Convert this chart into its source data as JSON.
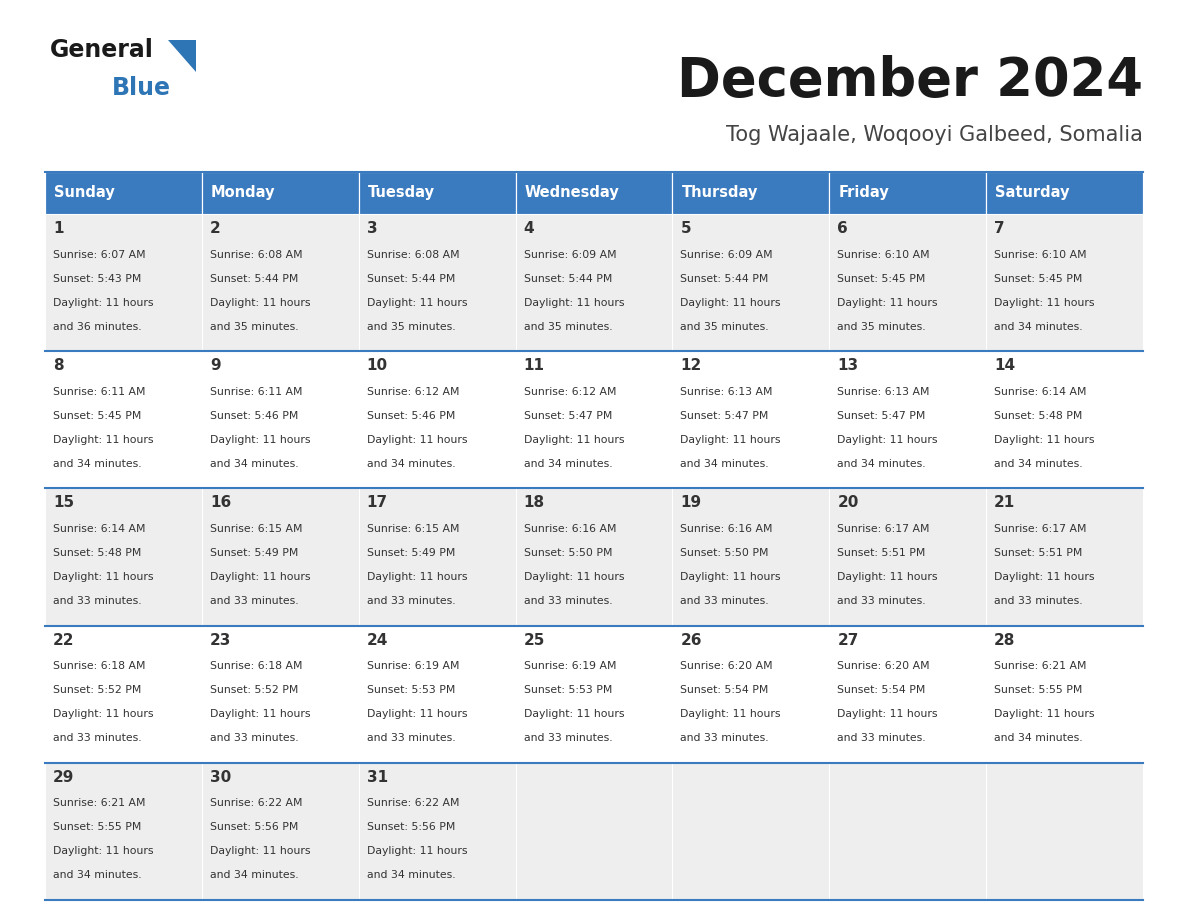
{
  "title": "December 2024",
  "subtitle": "Tog Wajaale, Woqooyi Galbeed, Somalia",
  "days_of_week": [
    "Sunday",
    "Monday",
    "Tuesday",
    "Wednesday",
    "Thursday",
    "Friday",
    "Saturday"
  ],
  "header_bg": "#3a7abf",
  "header_text": "#ffffff",
  "row_bg_even": "#eeeeee",
  "row_bg_odd": "#ffffff",
  "separator_color": "#3a7abf",
  "cell_text_color": "#333333",
  "day_num_color": "#333333",
  "calendar_data": [
    [
      {
        "day": 1,
        "sunrise": "6:07 AM",
        "sunset": "5:43 PM",
        "hours": "11 hours",
        "mins": "and 36 minutes."
      },
      {
        "day": 2,
        "sunrise": "6:08 AM",
        "sunset": "5:44 PM",
        "hours": "11 hours",
        "mins": "and 35 minutes."
      },
      {
        "day": 3,
        "sunrise": "6:08 AM",
        "sunset": "5:44 PM",
        "hours": "11 hours",
        "mins": "and 35 minutes."
      },
      {
        "day": 4,
        "sunrise": "6:09 AM",
        "sunset": "5:44 PM",
        "hours": "11 hours",
        "mins": "and 35 minutes."
      },
      {
        "day": 5,
        "sunrise": "6:09 AM",
        "sunset": "5:44 PM",
        "hours": "11 hours",
        "mins": "and 35 minutes."
      },
      {
        "day": 6,
        "sunrise": "6:10 AM",
        "sunset": "5:45 PM",
        "hours": "11 hours",
        "mins": "and 35 minutes."
      },
      {
        "day": 7,
        "sunrise": "6:10 AM",
        "sunset": "5:45 PM",
        "hours": "11 hours",
        "mins": "and 34 minutes."
      }
    ],
    [
      {
        "day": 8,
        "sunrise": "6:11 AM",
        "sunset": "5:45 PM",
        "hours": "11 hours",
        "mins": "and 34 minutes."
      },
      {
        "day": 9,
        "sunrise": "6:11 AM",
        "sunset": "5:46 PM",
        "hours": "11 hours",
        "mins": "and 34 minutes."
      },
      {
        "day": 10,
        "sunrise": "6:12 AM",
        "sunset": "5:46 PM",
        "hours": "11 hours",
        "mins": "and 34 minutes."
      },
      {
        "day": 11,
        "sunrise": "6:12 AM",
        "sunset": "5:47 PM",
        "hours": "11 hours",
        "mins": "and 34 minutes."
      },
      {
        "day": 12,
        "sunrise": "6:13 AM",
        "sunset": "5:47 PM",
        "hours": "11 hours",
        "mins": "and 34 minutes."
      },
      {
        "day": 13,
        "sunrise": "6:13 AM",
        "sunset": "5:47 PM",
        "hours": "11 hours",
        "mins": "and 34 minutes."
      },
      {
        "day": 14,
        "sunrise": "6:14 AM",
        "sunset": "5:48 PM",
        "hours": "11 hours",
        "mins": "and 34 minutes."
      }
    ],
    [
      {
        "day": 15,
        "sunrise": "6:14 AM",
        "sunset": "5:48 PM",
        "hours": "11 hours",
        "mins": "and 33 minutes."
      },
      {
        "day": 16,
        "sunrise": "6:15 AM",
        "sunset": "5:49 PM",
        "hours": "11 hours",
        "mins": "and 33 minutes."
      },
      {
        "day": 17,
        "sunrise": "6:15 AM",
        "sunset": "5:49 PM",
        "hours": "11 hours",
        "mins": "and 33 minutes."
      },
      {
        "day": 18,
        "sunrise": "6:16 AM",
        "sunset": "5:50 PM",
        "hours": "11 hours",
        "mins": "and 33 minutes."
      },
      {
        "day": 19,
        "sunrise": "6:16 AM",
        "sunset": "5:50 PM",
        "hours": "11 hours",
        "mins": "and 33 minutes."
      },
      {
        "day": 20,
        "sunrise": "6:17 AM",
        "sunset": "5:51 PM",
        "hours": "11 hours",
        "mins": "and 33 minutes."
      },
      {
        "day": 21,
        "sunrise": "6:17 AM",
        "sunset": "5:51 PM",
        "hours": "11 hours",
        "mins": "and 33 minutes."
      }
    ],
    [
      {
        "day": 22,
        "sunrise": "6:18 AM",
        "sunset": "5:52 PM",
        "hours": "11 hours",
        "mins": "and 33 minutes."
      },
      {
        "day": 23,
        "sunrise": "6:18 AM",
        "sunset": "5:52 PM",
        "hours": "11 hours",
        "mins": "and 33 minutes."
      },
      {
        "day": 24,
        "sunrise": "6:19 AM",
        "sunset": "5:53 PM",
        "hours": "11 hours",
        "mins": "and 33 minutes."
      },
      {
        "day": 25,
        "sunrise": "6:19 AM",
        "sunset": "5:53 PM",
        "hours": "11 hours",
        "mins": "and 33 minutes."
      },
      {
        "day": 26,
        "sunrise": "6:20 AM",
        "sunset": "5:54 PM",
        "hours": "11 hours",
        "mins": "and 33 minutes."
      },
      {
        "day": 27,
        "sunrise": "6:20 AM",
        "sunset": "5:54 PM",
        "hours": "11 hours",
        "mins": "and 33 minutes."
      },
      {
        "day": 28,
        "sunrise": "6:21 AM",
        "sunset": "5:55 PM",
        "hours": "11 hours",
        "mins": "and 34 minutes."
      }
    ],
    [
      {
        "day": 29,
        "sunrise": "6:21 AM",
        "sunset": "5:55 PM",
        "hours": "11 hours",
        "mins": "and 34 minutes."
      },
      {
        "day": 30,
        "sunrise": "6:22 AM",
        "sunset": "5:56 PM",
        "hours": "11 hours",
        "mins": "and 34 minutes."
      },
      {
        "day": 31,
        "sunrise": "6:22 AM",
        "sunset": "5:56 PM",
        "hours": "11 hours",
        "mins": "and 34 minutes."
      },
      null,
      null,
      null,
      null
    ]
  ],
  "logo_general_color": "#1a1a1a",
  "logo_blue_color": "#2e75b6",
  "title_color": "#1a1a1a",
  "subtitle_color": "#444444",
  "fig_width": 11.88,
  "fig_height": 9.18,
  "dpi": 100
}
